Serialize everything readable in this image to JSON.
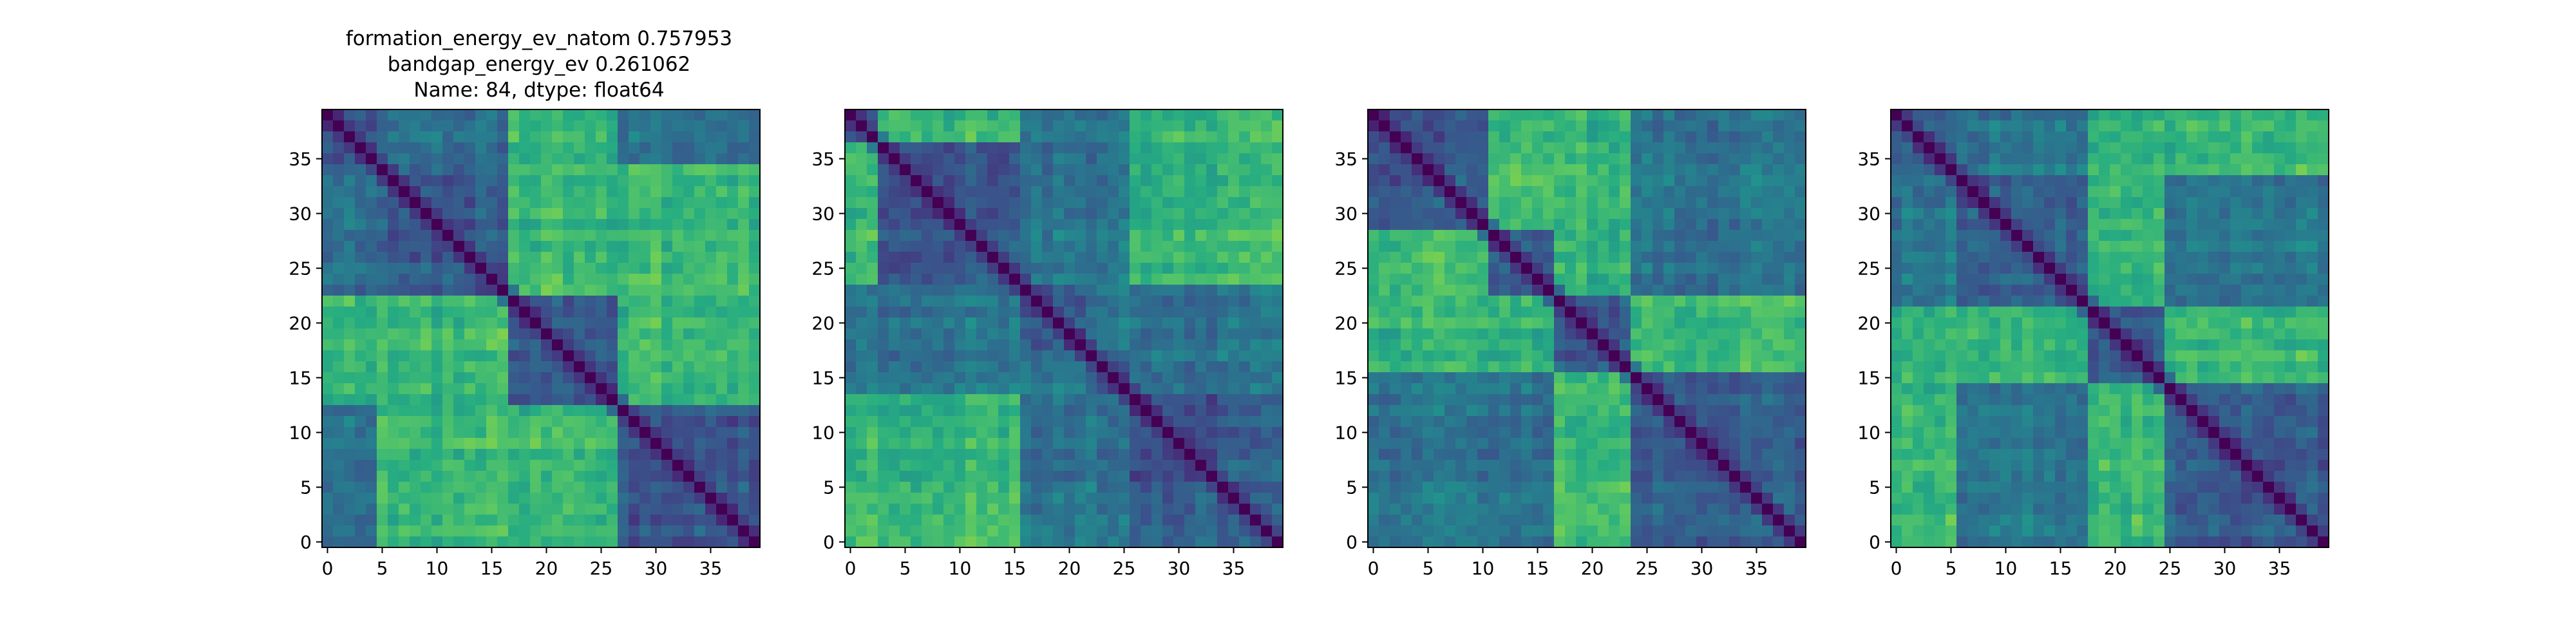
{
  "figure": {
    "title_lines": [
      "formation_energy_ev_natom    0.757953",
      "bandgap_energy_ev           0.261062",
      "Name: 84, dtype: float64"
    ]
  },
  "chart_data": [
    {
      "type": "heatmap",
      "colormap": "viridis",
      "size": 40,
      "x_ticks": [
        0,
        5,
        10,
        15,
        20,
        25,
        30,
        35
      ],
      "y_ticks": [
        0,
        5,
        10,
        15,
        20,
        25,
        30,
        35
      ],
      "xlim": [
        -0.5,
        39.5
      ],
      "ylim": [
        39.5,
        -0.5
      ],
      "diagonal_value": 0.0,
      "block_boundaries": [
        5,
        17,
        27
      ],
      "high_blocks": [
        [
          0,
          2
        ],
        [
          1,
          2
        ],
        [
          2,
          3
        ],
        [
          1,
          3
        ]
      ],
      "seed": 11
    },
    {
      "type": "heatmap",
      "colormap": "viridis",
      "size": 40,
      "x_ticks": [
        0,
        5,
        10,
        15,
        20,
        25,
        30,
        35
      ],
      "y_ticks": [
        0,
        5,
        10,
        15,
        20,
        25,
        30,
        35
      ],
      "xlim": [
        -0.5,
        39.5
      ],
      "ylim": [
        39.5,
        -0.5
      ],
      "diagonal_value": 0.0,
      "block_boundaries": [
        3,
        16,
        22,
        26
      ],
      "high_blocks": [
        [
          0,
          1
        ],
        [
          0,
          4
        ],
        [
          1,
          4
        ]
      ],
      "seed": 23
    },
    {
      "type": "heatmap",
      "colormap": "viridis",
      "size": 40,
      "x_ticks": [
        0,
        5,
        10,
        15,
        20,
        25,
        30,
        35
      ],
      "y_ticks": [
        0,
        5,
        10,
        15,
        20,
        25,
        30,
        35
      ],
      "xlim": [
        -0.5,
        39.5
      ],
      "ylim": [
        39.5,
        -0.5
      ],
      "diagonal_value": 0.0,
      "block_boundaries": [
        11,
        17,
        24
      ],
      "high_blocks": [
        [
          0,
          1
        ],
        [
          1,
          2
        ],
        [
          0,
          2
        ],
        [
          2,
          3
        ]
      ],
      "seed": 37
    },
    {
      "type": "heatmap",
      "colormap": "viridis",
      "size": 40,
      "x_ticks": [
        0,
        5,
        10,
        15,
        20,
        25,
        30,
        35
      ],
      "y_ticks": [
        0,
        5,
        10,
        15,
        20,
        25,
        30,
        35
      ],
      "xlim": [
        -0.5,
        39.5
      ],
      "ylim": [
        39.5,
        -0.5
      ],
      "diagonal_value": 0.0,
      "block_boundaries": [
        6,
        18,
        25
      ],
      "high_blocks": [
        [
          0,
          3
        ],
        [
          1,
          2
        ],
        [
          0,
          2
        ],
        [
          2,
          3
        ]
      ],
      "seed": 51
    }
  ]
}
